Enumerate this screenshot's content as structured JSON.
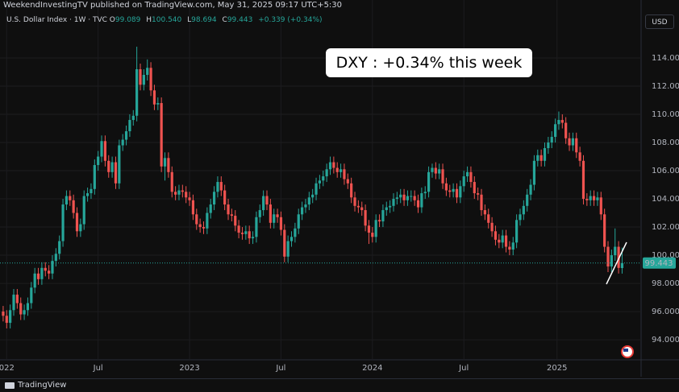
{
  "header": {
    "publisher": "WeekendInvestingTV published on TradingView.com, May 31, 2025 09:17 UTC+5:30",
    "brand": "TradingView"
  },
  "chart_data": {
    "type": "candlestick",
    "title": "U.S. Dollar Index · 1W · TVC",
    "legend": {
      "labels": [
        "O",
        "H",
        "L",
        "C"
      ],
      "values": [
        "99.089",
        "100.540",
        "98.694",
        "99.443"
      ],
      "change": "+0.339 (+0.34%)"
    },
    "currency": "USD",
    "annotation": "DXY : +0.34% this week",
    "last_price_label": "99.443",
    "up_color": "#26a69a",
    "down_color": "#ef5350",
    "grid": true,
    "xlim": [
      -0.9,
      181.4
    ],
    "xticks": [
      {
        "value": 1,
        "label": "022"
      },
      {
        "value": 27,
        "label": "Jul"
      },
      {
        "value": 53,
        "label": "2023"
      },
      {
        "value": 79,
        "label": "Jul"
      },
      {
        "value": 105,
        "label": "2024"
      },
      {
        "value": 131,
        "label": "Jul"
      },
      {
        "value": 157.5,
        "label": "2025"
      }
    ],
    "ylim": [
      92.69,
      115.83
    ],
    "yticks": [
      {
        "value": 94,
        "label": "94.000"
      },
      {
        "value": 96,
        "label": "96.000"
      },
      {
        "value": 98,
        "label": "98.000"
      },
      {
        "value": 100,
        "label": "100.000"
      },
      {
        "value": 102,
        "label": "102.000"
      },
      {
        "value": 104,
        "label": "104.000"
      },
      {
        "value": 106,
        "label": "106.000"
      },
      {
        "value": 108,
        "label": "108.000"
      },
      {
        "value": 110,
        "label": "110.000"
      },
      {
        "value": 112,
        "label": "112.000"
      },
      {
        "value": 114,
        "label": "114.000"
      }
    ],
    "ohlc": [
      [
        96.0,
        96.4,
        95.3,
        95.7
      ],
      [
        95.7,
        96.1,
        94.8,
        95.2
      ],
      [
        95.2,
        96.5,
        94.8,
        96.1
      ],
      [
        96.1,
        97.6,
        95.7,
        97.2
      ],
      [
        97.2,
        97.6,
        96.2,
        96.6
      ],
      [
        96.6,
        97.0,
        95.4,
        95.8
      ],
      [
        95.8,
        96.5,
        95.4,
        96.1
      ],
      [
        96.1,
        97.0,
        95.7,
        96.6
      ],
      [
        96.6,
        98.1,
        96.2,
        97.7
      ],
      [
        97.7,
        99.1,
        97.3,
        98.7
      ],
      [
        98.7,
        99.1,
        97.9,
        98.3
      ],
      [
        98.3,
        99.5,
        97.9,
        99.1
      ],
      [
        99.1,
        99.5,
        98.5,
        98.9
      ],
      [
        98.9,
        99.3,
        98.3,
        98.7
      ],
      [
        98.7,
        100.0,
        98.3,
        99.6
      ],
      [
        99.6,
        100.5,
        99.2,
        100.1
      ],
      [
        100.1,
        101.4,
        99.7,
        101.0
      ],
      [
        101.0,
        104.0,
        100.6,
        103.6
      ],
      [
        103.6,
        104.6,
        103.2,
        104.2
      ],
      [
        104.2,
        104.6,
        103.5,
        103.9
      ],
      [
        103.9,
        104.3,
        102.6,
        103.0
      ],
      [
        103.0,
        103.4,
        101.3,
        101.7
      ],
      [
        101.7,
        102.6,
        101.3,
        102.2
      ],
      [
        102.2,
        104.6,
        101.8,
        104.2
      ],
      [
        104.2,
        104.8,
        103.8,
        104.4
      ],
      [
        104.4,
        105.1,
        104.0,
        104.7
      ],
      [
        104.7,
        106.8,
        104.3,
        106.4
      ],
      [
        106.4,
        107.4,
        106.0,
        107.0
      ],
      [
        107.0,
        108.5,
        106.6,
        108.1
      ],
      [
        108.1,
        108.5,
        106.3,
        106.7
      ],
      [
        106.7,
        107.1,
        105.5,
        105.9
      ],
      [
        105.9,
        107.0,
        105.5,
        106.6
      ],
      [
        106.6,
        107.0,
        104.7,
        105.1
      ],
      [
        105.1,
        108.2,
        104.7,
        107.8
      ],
      [
        107.8,
        108.6,
        107.4,
        108.2
      ],
      [
        108.2,
        109.2,
        107.8,
        108.8
      ],
      [
        108.8,
        110.0,
        108.4,
        109.6
      ],
      [
        109.6,
        110.3,
        109.2,
        109.9
      ],
      [
        109.9,
        114.8,
        109.5,
        113.2
      ],
      [
        113.2,
        113.6,
        111.7,
        112.1
      ],
      [
        112.1,
        113.2,
        111.7,
        112.8
      ],
      [
        112.8,
        113.9,
        112.4,
        113.3
      ],
      [
        113.3,
        113.7,
        111.3,
        111.7
      ],
      [
        111.7,
        112.1,
        110.3,
        110.7
      ],
      [
        110.7,
        111.2,
        110.3,
        110.8
      ],
      [
        110.8,
        111.2,
        105.9,
        106.3
      ],
      [
        106.3,
        107.3,
        105.3,
        106.9
      ],
      [
        106.9,
        107.3,
        105.5,
        105.9
      ],
      [
        105.9,
        106.3,
        104.1,
        104.5
      ],
      [
        104.5,
        104.9,
        103.9,
        104.3
      ],
      [
        104.3,
        105.0,
        103.9,
        104.6
      ],
      [
        104.6,
        105.0,
        104.1,
        104.5
      ],
      [
        104.5,
        104.9,
        103.7,
        104.1
      ],
      [
        104.1,
        104.5,
        103.5,
        103.9
      ],
      [
        103.9,
        104.3,
        102.5,
        102.9
      ],
      [
        102.9,
        103.3,
        101.8,
        102.2
      ],
      [
        102.2,
        102.6,
        101.6,
        102.0
      ],
      [
        102.0,
        102.4,
        101.5,
        101.9
      ],
      [
        101.9,
        103.4,
        101.5,
        103.0
      ],
      [
        103.0,
        104.0,
        102.6,
        103.6
      ],
      [
        103.6,
        104.9,
        103.2,
        104.5
      ],
      [
        104.5,
        105.6,
        104.1,
        105.2
      ],
      [
        105.2,
        105.6,
        104.2,
        104.6
      ],
      [
        104.6,
        105.0,
        103.2,
        103.6
      ],
      [
        103.6,
        104.0,
        102.5,
        102.9
      ],
      [
        102.9,
        103.3,
        102.4,
        102.8
      ],
      [
        102.8,
        103.2,
        101.7,
        102.1
      ],
      [
        102.1,
        102.5,
        101.2,
        101.6
      ],
      [
        101.6,
        102.0,
        101.1,
        101.5
      ],
      [
        101.5,
        102.1,
        101.1,
        101.7
      ],
      [
        101.7,
        102.1,
        100.8,
        101.2
      ],
      [
        101.2,
        101.7,
        100.8,
        101.3
      ],
      [
        101.3,
        103.1,
        100.9,
        102.7
      ],
      [
        102.7,
        103.6,
        102.3,
        103.2
      ],
      [
        103.2,
        104.6,
        102.8,
        104.2
      ],
      [
        104.2,
        104.6,
        103.2,
        103.6
      ],
      [
        103.6,
        104.0,
        101.9,
        102.3
      ],
      [
        102.3,
        103.3,
        101.9,
        102.9
      ],
      [
        102.9,
        103.3,
        102.3,
        102.7
      ],
      [
        102.7,
        103.1,
        101.4,
        101.8
      ],
      [
        101.8,
        102.2,
        99.5,
        99.9
      ],
      [
        99.9,
        101.4,
        99.5,
        101.0
      ],
      [
        101.0,
        101.7,
        100.6,
        101.3
      ],
      [
        101.3,
        102.3,
        100.9,
        101.9
      ],
      [
        101.9,
        103.3,
        101.5,
        102.9
      ],
      [
        102.9,
        103.8,
        102.5,
        103.4
      ],
      [
        103.4,
        104.0,
        103.0,
        103.6
      ],
      [
        103.6,
        104.5,
        103.2,
        104.1
      ],
      [
        104.1,
        104.7,
        103.7,
        104.3
      ],
      [
        104.3,
        105.5,
        103.9,
        105.1
      ],
      [
        105.1,
        105.7,
        104.7,
        105.3
      ],
      [
        105.3,
        106.0,
        104.9,
        105.6
      ],
      [
        105.6,
        106.5,
        105.2,
        106.1
      ],
      [
        106.1,
        107.0,
        105.7,
        106.6
      ],
      [
        106.6,
        107.0,
        105.8,
        106.2
      ],
      [
        106.2,
        106.6,
        105.5,
        105.9
      ],
      [
        105.9,
        106.5,
        105.5,
        106.1
      ],
      [
        106.1,
        106.5,
        105.0,
        105.4
      ],
      [
        105.4,
        105.8,
        104.7,
        105.1
      ],
      [
        105.1,
        105.5,
        103.7,
        104.1
      ],
      [
        104.1,
        104.5,
        103.1,
        103.5
      ],
      [
        103.5,
        103.9,
        103.0,
        103.4
      ],
      [
        103.4,
        103.8,
        102.8,
        103.2
      ],
      [
        103.2,
        103.6,
        101.7,
        102.1
      ],
      [
        102.1,
        102.5,
        100.8,
        101.6
      ],
      [
        101.6,
        102.0,
        100.9,
        101.3
      ],
      [
        101.3,
        102.9,
        100.9,
        102.5
      ],
      [
        102.5,
        102.9,
        102.0,
        102.4
      ],
      [
        102.4,
        103.6,
        102.0,
        103.2
      ],
      [
        103.2,
        103.8,
        102.8,
        103.4
      ],
      [
        103.4,
        103.9,
        103.0,
        103.5
      ],
      [
        103.5,
        104.4,
        103.1,
        104.0
      ],
      [
        104.0,
        104.5,
        103.6,
        104.1
      ],
      [
        104.1,
        104.7,
        103.7,
        104.3
      ],
      [
        104.3,
        104.7,
        103.5,
        103.9
      ],
      [
        103.9,
        104.6,
        103.5,
        104.2
      ],
      [
        104.2,
        104.6,
        103.8,
        104.2
      ],
      [
        104.2,
        104.6,
        103.5,
        103.9
      ],
      [
        103.9,
        104.3,
        103.0,
        103.4
      ],
      [
        103.4,
        104.8,
        103.0,
        104.4
      ],
      [
        104.4,
        104.9,
        104.0,
        104.5
      ],
      [
        104.5,
        106.3,
        104.1,
        105.9
      ],
      [
        105.9,
        106.5,
        105.5,
        106.2
      ],
      [
        106.2,
        106.6,
        105.4,
        105.8
      ],
      [
        105.8,
        106.5,
        105.4,
        106.1
      ],
      [
        106.1,
        106.5,
        104.7,
        105.1
      ],
      [
        105.1,
        105.5,
        104.2,
        104.6
      ],
      [
        104.6,
        105.0,
        104.1,
        104.5
      ],
      [
        104.5,
        105.1,
        104.1,
        104.7
      ],
      [
        104.7,
        105.1,
        103.7,
        104.1
      ],
      [
        104.1,
        105.3,
        103.7,
        104.9
      ],
      [
        104.9,
        106.0,
        104.5,
        105.6
      ],
      [
        105.6,
        106.3,
        105.2,
        105.9
      ],
      [
        105.9,
        106.3,
        104.8,
        105.2
      ],
      [
        105.2,
        105.6,
        104.0,
        104.4
      ],
      [
        104.4,
        104.8,
        103.9,
        104.3
      ],
      [
        104.3,
        104.7,
        102.8,
        103.2
      ],
      [
        103.2,
        103.6,
        102.5,
        102.9
      ],
      [
        102.9,
        103.3,
        101.9,
        102.3
      ],
      [
        102.3,
        102.7,
        101.3,
        101.7
      ],
      [
        101.7,
        102.1,
        100.7,
        101.1
      ],
      [
        101.1,
        101.5,
        100.5,
        100.9
      ],
      [
        100.9,
        101.8,
        100.5,
        101.4
      ],
      [
        101.4,
        101.8,
        100.2,
        100.6
      ],
      [
        100.6,
        101.0,
        100.0,
        100.4
      ],
      [
        100.4,
        101.3,
        100.0,
        100.9
      ],
      [
        100.9,
        102.9,
        100.5,
        102.5
      ],
      [
        102.5,
        103.3,
        102.1,
        102.9
      ],
      [
        102.9,
        103.9,
        102.5,
        103.5
      ],
      [
        103.5,
        104.7,
        103.1,
        104.3
      ],
      [
        104.3,
        105.4,
        103.9,
        105.0
      ],
      [
        105.0,
        107.1,
        104.6,
        106.7
      ],
      [
        106.7,
        107.5,
        106.3,
        107.1
      ],
      [
        107.1,
        107.5,
        106.3,
        106.7
      ],
      [
        106.7,
        108.0,
        106.3,
        107.6
      ],
      [
        107.6,
        108.4,
        107.2,
        108.0
      ],
      [
        108.0,
        108.8,
        107.6,
        108.4
      ],
      [
        108.4,
        109.7,
        108.0,
        109.3
      ],
      [
        109.3,
        110.2,
        108.9,
        109.6
      ],
      [
        109.6,
        110.0,
        109.0,
        109.4
      ],
      [
        109.4,
        109.8,
        107.9,
        108.3
      ],
      [
        108.3,
        108.7,
        107.4,
        107.8
      ],
      [
        107.8,
        108.7,
        107.4,
        108.3
      ],
      [
        108.3,
        108.7,
        106.9,
        107.3
      ],
      [
        107.3,
        107.7,
        106.3,
        106.7
      ],
      [
        106.7,
        107.1,
        103.6,
        104.0
      ],
      [
        104.0,
        104.4,
        103.5,
        103.9
      ],
      [
        103.9,
        104.6,
        103.5,
        104.2
      ],
      [
        104.2,
        104.6,
        103.5,
        103.9
      ],
      [
        103.9,
        104.5,
        103.5,
        104.1
      ],
      [
        104.1,
        104.5,
        102.5,
        102.9
      ],
      [
        102.9,
        103.3,
        100.2,
        100.6
      ],
      [
        100.6,
        101.0,
        98.8,
        99.2
      ],
      [
        99.2,
        100.4,
        98.8,
        100.0
      ],
      [
        100.0,
        101.9,
        99.6,
        100.6
      ],
      [
        100.6,
        101.0,
        98.7,
        99.1
      ],
      [
        99.089,
        100.54,
        98.694,
        99.443
      ]
    ]
  }
}
